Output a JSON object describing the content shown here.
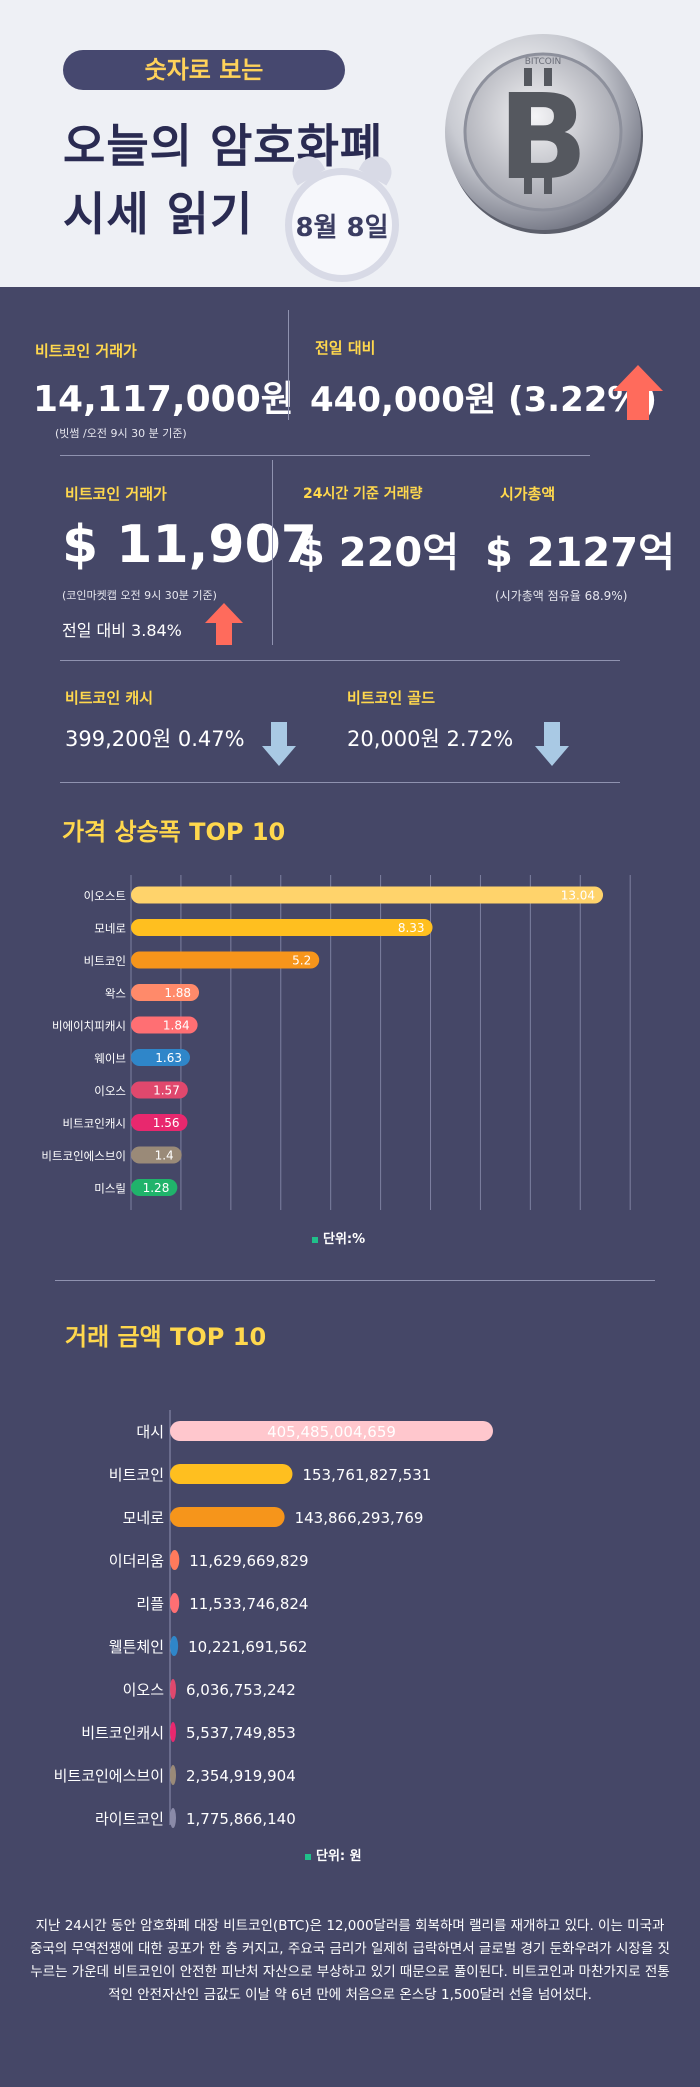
{
  "header": {
    "pill": "숫자로 보는",
    "title_line1": "오늘의 암호화폐",
    "title_line2": "시세 읽기",
    "date": "8월 8일",
    "coin_text": "BITCOIN"
  },
  "btc_krw": {
    "label": "비트코인 거래가",
    "price": "14,117,000원",
    "note": "(빗썸 /오전 9시 30 분 기준)"
  },
  "prev_day": {
    "label": "전일 대비",
    "value": "440,000원 (3.22%)"
  },
  "btc_usd": {
    "label": "비트코인 거래가",
    "price": "$ 11,907",
    "note": "(코인마켓캡 오전 9시 30분 기준)",
    "change": "전일 대비 3.84%"
  },
  "volume": {
    "label": "24시간 기준 거래량",
    "value": "$ 220억"
  },
  "market_cap": {
    "label": "시가총액",
    "value": "$ 2127억",
    "note": "(시가총액 점유율 68.9%)"
  },
  "btc_cash": {
    "label": "비트코인 캐시",
    "value": "399,200원  0.47%"
  },
  "btc_gold": {
    "label": "비트코인 골드",
    "value": "20,000원  2.72%"
  },
  "colors": {
    "panel": "#454767",
    "accent_yellow": "#ffd84d",
    "up_arrow": "#ff6b5c",
    "down_arrow": "#a9c9e4"
  },
  "chart_data": [
    {
      "type": "bar",
      "title": "가격 상승폭 TOP 10",
      "unit_label": "단위:%",
      "categories": [
        "이오스트",
        "모네로",
        "비트코인",
        "왁스",
        "비에이치피캐시",
        "웨이브",
        "이오스",
        "비트코인캐시",
        "비트코인에스브이",
        "미스릴"
      ],
      "values": [
        13.04,
        8.33,
        5.2,
        1.88,
        1.84,
        1.63,
        1.57,
        1.56,
        1.4,
        1.28
      ],
      "labels": [
        "13.04",
        "8.33",
        "5.2",
        "1.88",
        "1.84",
        "1.63",
        "1.57",
        "1.56",
        "1.4",
        "1.28"
      ],
      "colors": [
        "#ffd36b",
        "#ffbf1f",
        "#f6951b",
        "#ff8a6a",
        "#ff6f73",
        "#2f86c9",
        "#e0486d",
        "#e8286e",
        "#9a8a78",
        "#20b36b"
      ],
      "xlim": [
        0,
        14
      ],
      "grid": true
    },
    {
      "type": "bar",
      "title": "거래 금액 TOP 10",
      "unit_label": "단위: 원",
      "categories": [
        "대시",
        "비트코인",
        "모네로",
        "이더리움",
        "리플",
        "웰튼체인",
        "이오스",
        "비트코인캐시",
        "비트코인에스브이",
        "라이트코인"
      ],
      "values": [
        405485004659,
        153761827531,
        143866293769,
        11629669829,
        11533746824,
        10221691562,
        6036753242,
        5537749853,
        2354919904,
        1775866140
      ],
      "labels": [
        "405,485,004,659",
        "153,761,827,531",
        "143,866,293,769",
        "11,629,669,829",
        "11,533,746,824",
        "10,221,691,562",
        "6,036,753,242",
        "5,537,749,853",
        "2,354,919,904",
        "1,775,866,140"
      ],
      "colors": [
        "#ffc7cd",
        "#ffbf1f",
        "#f6951b",
        "#ff7a5c",
        "#ff6f73",
        "#2f86c9",
        "#e0486d",
        "#e8286e",
        "#9a8a78",
        "#8a8aa8"
      ],
      "grid": false
    }
  ],
  "footer": "지난 24시간 동안 암호화폐 대장 비트코인(BTC)은 12,000달러를 회복하며 랠리를 재개하고 있다. 이는 미국과 중국의 무역전쟁에 대한 공포가 한 층 커지고, 주요국 금리가 일제히 급락하면서 글로벌 경기 둔화우려가 시장을 짓누르는 가운데 비트코인이 안전한 피난처 자산으로 부상하고 있기 때문으로 풀이된다. 비트코인과 마찬가지로 전통적인 안전자산인 금값도 이날 약 6년 만에 처음으로 온스당 1,500달러 선을 넘어섰다."
}
